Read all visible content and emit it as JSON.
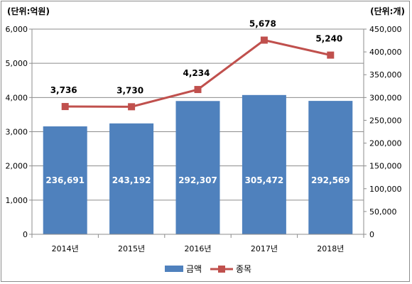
{
  "chart_data": {
    "type": "bar",
    "categories": [
      "2014년",
      "2015년",
      "2016년",
      "2017년",
      "2018년"
    ],
    "left_axis_unit": "(단위:억원)",
    "right_axis_unit": "(단위:개)",
    "left_ylim": [
      0,
      6000
    ],
    "left_ticks": [
      "6,000",
      "5,000",
      "4,000",
      "3,000",
      "2,000",
      "1,000",
      "0"
    ],
    "right_ylim": [
      0,
      450000
    ],
    "right_ticks": [
      "450,000",
      "400,000",
      "350,000",
      "300,000",
      "250,000",
      "200,000",
      "150,000",
      "100,000",
      "50,000",
      "0"
    ],
    "grid": true,
    "legend_position": "bottom",
    "series": [
      {
        "name": "금액",
        "kind": "bar",
        "axis": "right",
        "color": "#4f81bd",
        "values": [
          236691,
          243192,
          292307,
          305472,
          292569
        ],
        "labels": [
          "236,691",
          "243,192",
          "292,307",
          "305,472",
          "292,569"
        ]
      },
      {
        "name": "종목",
        "kind": "line",
        "axis": "left",
        "color": "#c0504d",
        "values": [
          3736,
          3730,
          4234,
          5678,
          5240
        ],
        "labels": [
          "3,736",
          "3,730",
          "4,234",
          "5,678",
          "5,240"
        ]
      }
    ]
  }
}
